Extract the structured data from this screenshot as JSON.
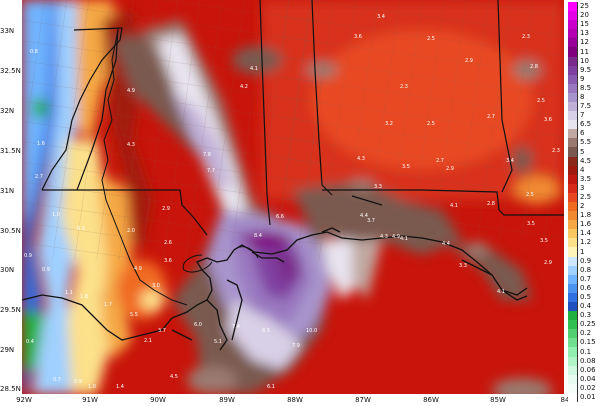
{
  "latitude_labels": [
    "33N",
    "32.5N",
    "32N",
    "31.5N",
    "31N",
    "30.5N",
    "30N",
    "29.5N",
    "29N",
    "28.5N"
  ],
  "longitude_labels": [
    "92W",
    "91W",
    "90W",
    "89W",
    "88W",
    "87W",
    "86W",
    "85W",
    "84"
  ],
  "legend": {
    "labels": [
      "25",
      "20",
      "15",
      "13",
      "12",
      "11",
      "10",
      "9.5",
      "9",
      "8.5",
      "8",
      "7.5",
      "7",
      "6.5",
      "6",
      "5.5",
      "5",
      "4.5",
      "4",
      "3.5",
      "3",
      "2.5",
      "2",
      "1.8",
      "1.6",
      "1.4",
      "1.2",
      "1",
      "0.9",
      "0.8",
      "0.7",
      "0.6",
      "0.5",
      "0.4",
      "0.3",
      "0.25",
      "0.2",
      "0.15",
      "0.1",
      "0.08",
      "0.06",
      "0.04",
      "0.02",
      "0.01"
    ],
    "colors": [
      "#ff00ff",
      "#e600e6",
      "#cc00cc",
      "#b300b3",
      "#990099",
      "#800080",
      "#7a2a8a",
      "#8040a0",
      "#8a5ab0",
      "#9a78c0",
      "#a894cc",
      "#c0b0d8",
      "#d8d0e6",
      "#e8e4ee",
      "#c0a8a0",
      "#9a7a70",
      "#7a5a50",
      "#8b2a1a",
      "#a01a10",
      "#c01a10",
      "#d82a18",
      "#e84820",
      "#f06a20",
      "#f08a30",
      "#f5a844",
      "#f8c860",
      "#fce08a",
      "#fff4b8",
      "#d0e8ff",
      "#a0d0ff",
      "#70b4ff",
      "#4a94f0",
      "#3070e0",
      "#2050c0",
      "#20b040",
      "#30c050",
      "#50d070",
      "#70e090",
      "#90f0b0",
      "#b0f4c8",
      "#d0f8e0",
      "#e8fbf0",
      "#f4fdf8",
      "#ffffff"
    ]
  },
  "map_values": [
    "3.4",
    "3.6",
    "2.5",
    "2.3",
    "0.8",
    "4.1",
    "2.9",
    "2.8",
    "4.9",
    "4.2",
    "2.3",
    "2.5",
    "4.3",
    "3.2",
    "2.5",
    "2.7",
    "3.6",
    "1.6",
    "4.3",
    "3.5",
    "4.3",
    "2.7",
    "2.9",
    "3.4",
    "2.3",
    "2.7",
    "7.8",
    "7.7",
    "3.3",
    "2.5",
    "6.6",
    "4.4",
    "4.1",
    "2.8",
    "3.5",
    "1.0",
    "2.9",
    "3.7",
    "0.9",
    "2.0",
    "2.6",
    "8.4",
    "4.3",
    "4.9",
    "4.1",
    "4.4",
    "3.5",
    "0.9",
    "3.6",
    "2.9",
    "4.9",
    "3.3",
    "0.9",
    "1.1",
    "1.8",
    "3.0",
    "4.1",
    "1.7",
    "5.5",
    "3.7",
    "6.0",
    "7.4",
    "8.5",
    "10.0",
    "0.4",
    "2.1",
    "5.1",
    "7.9",
    "4.5",
    "0.7",
    "0.9",
    "1.0",
    "1.4",
    "6.1"
  ],
  "colors": {
    "gulf_red": "#c8140a",
    "land_red": "#d22a14",
    "boundary": "#000000",
    "state_line": "#222222",
    "county_line": "#8a8a8a"
  }
}
